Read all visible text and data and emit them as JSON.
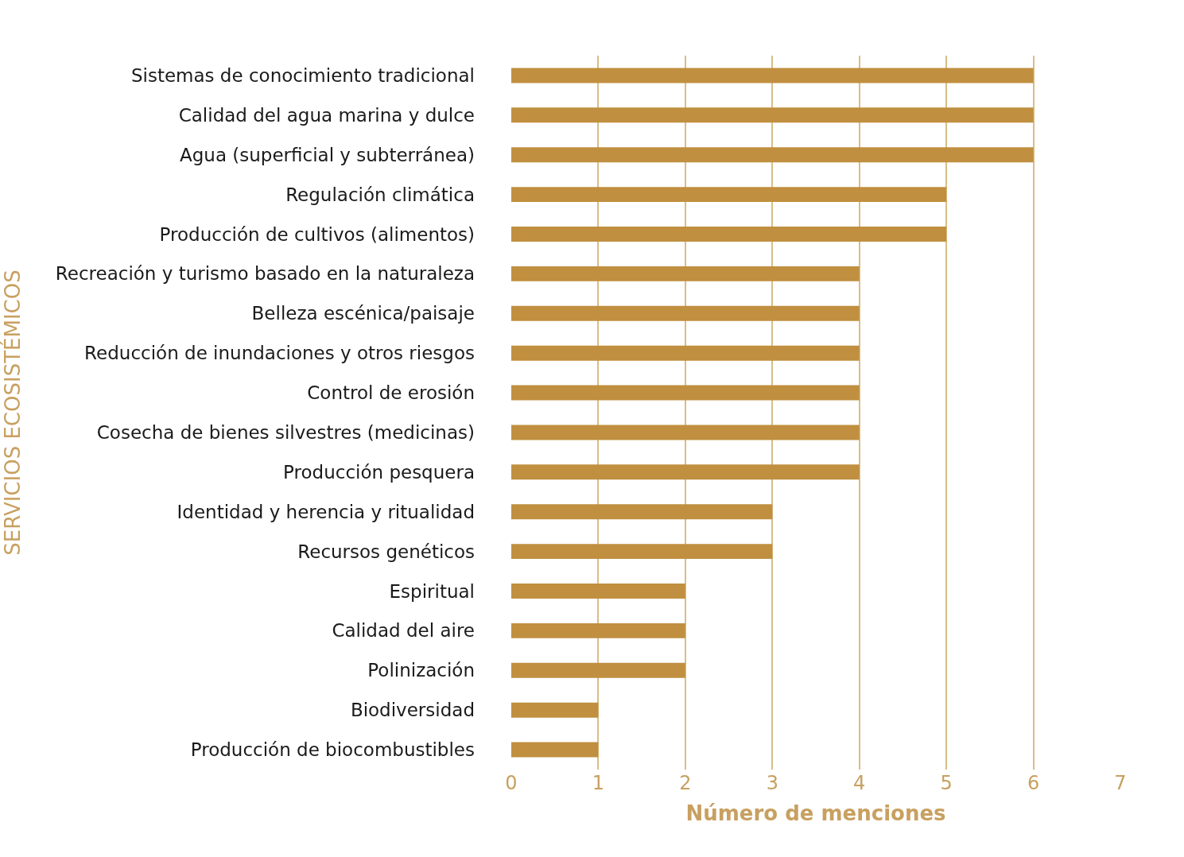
{
  "chart_data": {
    "type": "bar",
    "orientation": "horizontal",
    "xlabel": "Número de menciones",
    "ylabel": "SERVICIOS ECOSISTÉMICOS",
    "categories": [
      "Sistemas de conocimiento tradicional",
      "Calidad del agua marina y dulce",
      "Agua (superficial y subterránea)",
      "Regulación climática",
      "Producción de cultivos (alimentos)",
      "Recreación y turismo basado en la naturaleza",
      "Belleza escénica/paisaje",
      "Reducción de inundaciones y otros riesgos",
      "Control de erosión",
      "Cosecha de bienes silvestres (medicinas)",
      "Producción pesquera",
      "Identidad y herencia y ritualidad",
      "Recursos genéticos",
      "Espiritual",
      "Calidad del aire",
      "Polinización",
      "Biodiversidad",
      "Producción de biocombustibles"
    ],
    "values": [
      6,
      6,
      6,
      5,
      5,
      4,
      4,
      4,
      4,
      4,
      4,
      3,
      3,
      2,
      2,
      2,
      1,
      1
    ],
    "color": "#c08f3f",
    "xlim": [
      0,
      7
    ],
    "xticks": [
      0,
      1,
      2,
      3,
      4,
      5,
      6,
      7
    ],
    "grid": "x"
  }
}
